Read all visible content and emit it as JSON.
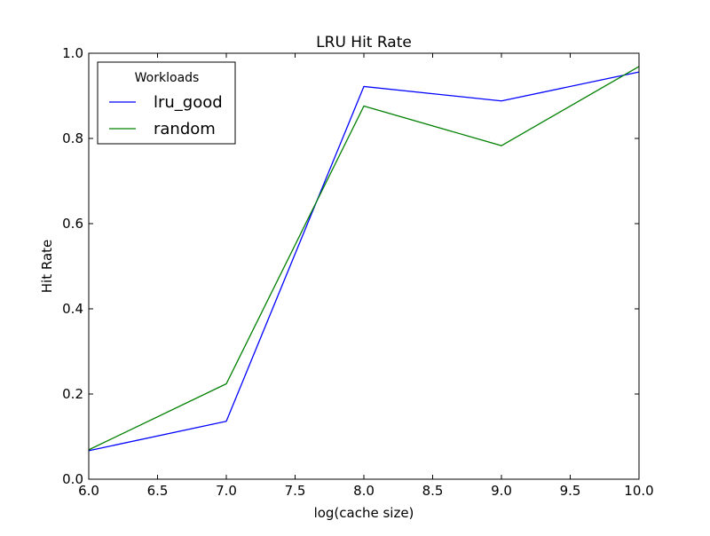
{
  "chart_data": {
    "type": "line",
    "title": "LRU Hit Rate",
    "xlabel": "log(cache size)",
    "ylabel": "Hit Rate",
    "xlim": [
      6.0,
      10.0
    ],
    "ylim": [
      0.0,
      1.0
    ],
    "xticks": [
      "6.0",
      "6.5",
      "7.0",
      "7.5",
      "8.0",
      "8.5",
      "9.0",
      "9.5",
      "10.0"
    ],
    "yticks": [
      "0.0",
      "0.2",
      "0.4",
      "0.6",
      "0.8",
      "1.0"
    ],
    "grid": false,
    "legend": {
      "title": "Workloads",
      "placement": "top-left"
    },
    "x": [
      6.0,
      7.0,
      8.0,
      9.0,
      10.0
    ],
    "series": [
      {
        "name": "lru_good",
        "color": "#0000ff",
        "values": [
          0.067,
          0.136,
          0.922,
          0.888,
          0.956
        ]
      },
      {
        "name": "random",
        "color": "#008000",
        "values": [
          0.069,
          0.224,
          0.876,
          0.783,
          0.969
        ]
      }
    ]
  }
}
